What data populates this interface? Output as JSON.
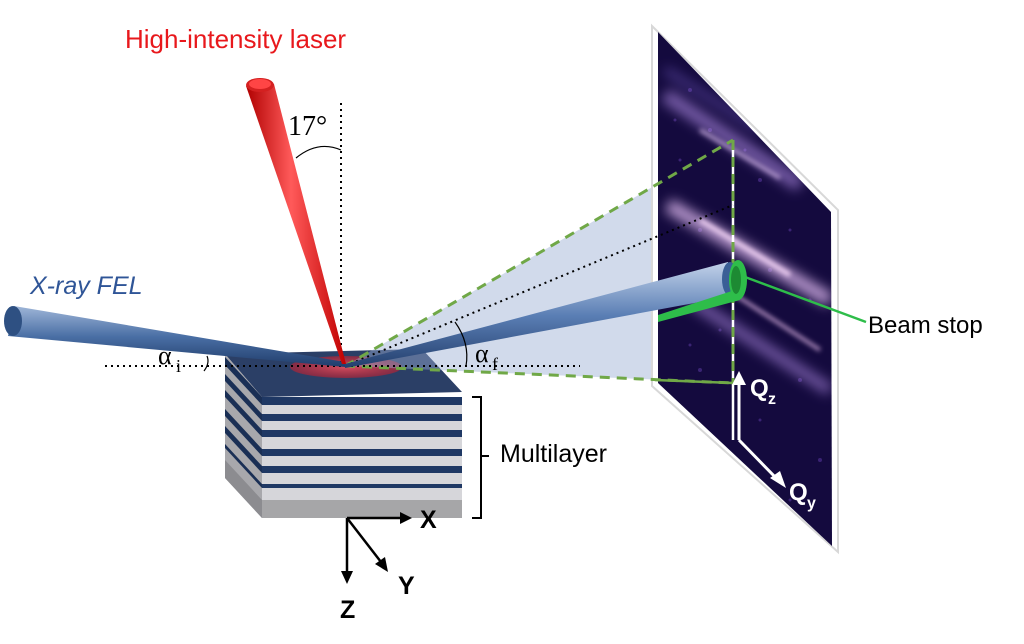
{
  "labels": {
    "laser": "High-intensity laser",
    "angle": "17°",
    "xray": "X-ray FEL",
    "alpha_i_base": "α",
    "alpha_i_sub": "i",
    "alpha_f_base": "α",
    "alpha_f_sub": "f",
    "beam_stop": "Beam stop",
    "multilayer": "Multilayer",
    "qz_base": "Q",
    "qz_sub": "z",
    "qy_base": "Q",
    "qy_sub": "y",
    "axis_x": "X",
    "axis_y": "Y",
    "axis_z": "Z"
  },
  "colors": {
    "laser": "#e8181c",
    "xray_text": "#2f5597",
    "beam_fill": "#4a6fa5",
    "layer_dark": "#1f3864",
    "layer_light": "#d0d0d4",
    "detector_bg": "#1a0d4a",
    "cone_fill": "#a9b9d8",
    "dash_green": "#70a847",
    "beam_stop": "#2ebd4a"
  },
  "icons": {
    "laser_beam": "red-cone-beam",
    "xray_beam": "blue-cone-beam",
    "detector": "scattering-pattern-screen"
  }
}
